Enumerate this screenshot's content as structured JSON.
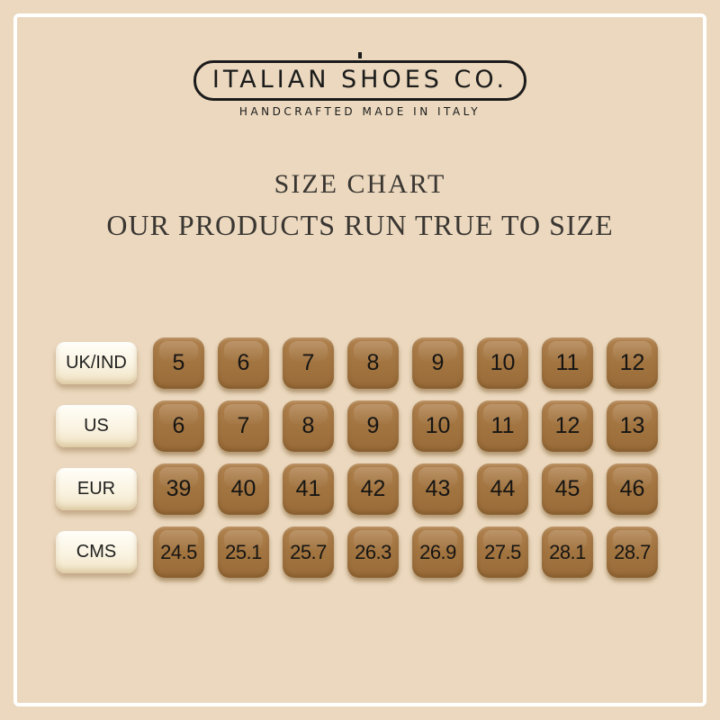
{
  "colors": {
    "background": "#ebd8be",
    "frame_line": "#ffffff",
    "cell_brown": "#a37541",
    "label_cream": "#faf3e1",
    "text_dark": "#1b1b1b",
    "heading_text": "#3a3632"
  },
  "logo": {
    "name": "ITALIAN SHOES CO.",
    "tagline": "HANDCRAFTED MADE IN ITALY"
  },
  "heading": {
    "title": "SIZE CHART",
    "subtitle": "OUR PRODUCTS RUN TRUE TO SIZE"
  },
  "chart_data": {
    "type": "table",
    "title": "SIZE CHART",
    "row_header_column": [
      "UK/IND",
      "US",
      "EUR",
      "CMS"
    ],
    "rows": [
      {
        "label": "UK/IND",
        "values": [
          "5",
          "6",
          "7",
          "8",
          "9",
          "10",
          "11",
          "12"
        ]
      },
      {
        "label": "US",
        "values": [
          "6",
          "7",
          "8",
          "9",
          "10",
          "11",
          "12",
          "13"
        ]
      },
      {
        "label": "EUR",
        "values": [
          "39",
          "40",
          "41",
          "42",
          "43",
          "44",
          "45",
          "46"
        ]
      },
      {
        "label": "CMS",
        "values": [
          "24.5",
          "25.1",
          "25.7",
          "26.3",
          "26.9",
          "27.5",
          "28.1",
          "28.7"
        ]
      }
    ]
  }
}
